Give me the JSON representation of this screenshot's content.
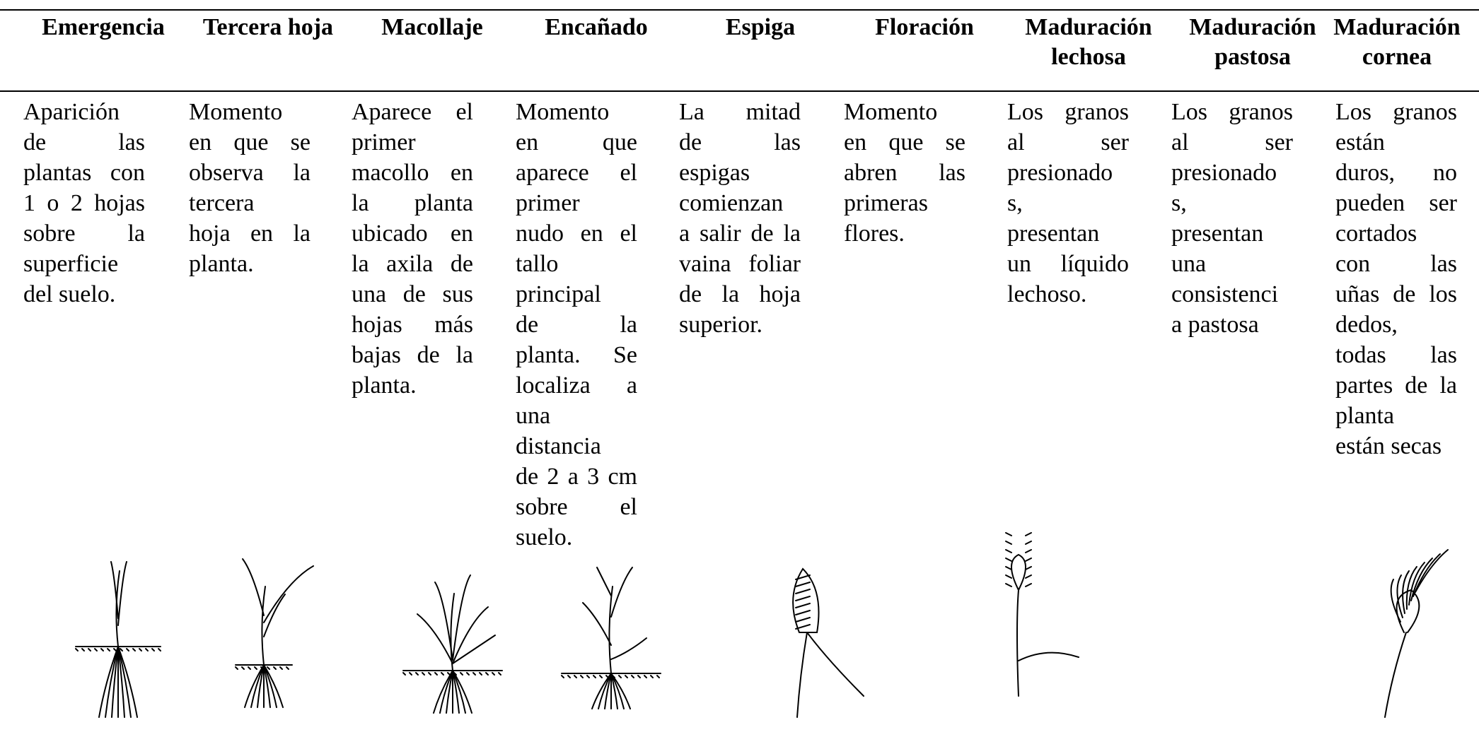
{
  "columns": [
    {
      "header": "Emergencia",
      "lines": [
        "Aparición",
        "de las",
        "plantas con",
        "1 o 2 hojas",
        "sobre la",
        "superficie",
        "del suelo."
      ]
    },
    {
      "header": "Tercera hoja",
      "lines": [
        "Momento",
        "en que se",
        "observa la",
        "tercera",
        "hoja en la",
        "planta."
      ]
    },
    {
      "header": "Macollaje",
      "lines": [
        "Aparece el",
        "primer",
        "macollo en",
        "la planta",
        "ubicado en",
        "la axila de",
        "una de sus",
        "hojas más",
        "bajas de la",
        "planta."
      ]
    },
    {
      "header": "Encañado",
      "lines": [
        "Momento",
        "en que",
        "aparece el",
        "primer",
        "nudo en el",
        "tallo",
        "principal",
        "de la",
        "planta. Se",
        "localiza a",
        "una",
        "distancia",
        "de 2 a 3 cm",
        "sobre el",
        "suelo."
      ]
    },
    {
      "header": "Espiga",
      "lines": [
        "La mitad",
        "de las",
        "espigas",
        "comienzan",
        "a salir de la",
        "vaina foliar",
        "de la hoja",
        "superior."
      ]
    },
    {
      "header": "Floración",
      "lines": [
        "Momento",
        "en que se",
        "abren las",
        "primeras",
        "flores."
      ]
    },
    {
      "header": "Maduración lechosa",
      "lines": [
        "Los granos",
        "al ser",
        "presionado",
        "s,",
        "presentan",
        "un líquido",
        "lechoso."
      ]
    },
    {
      "header": "Maduración pastosa",
      "lines": [
        "Los granos",
        "al ser",
        "presionado",
        "s,",
        "presentan",
        "una",
        "consistenci",
        "a pastosa"
      ]
    },
    {
      "header": "Maduración cornea",
      "lines": [
        "Los granos",
        "están",
        "duros, no",
        "pueden ser",
        "cortados",
        "con las",
        "uñas de los",
        "dedos,",
        "todas las",
        "partes de la",
        "planta",
        "están secas"
      ]
    }
  ]
}
